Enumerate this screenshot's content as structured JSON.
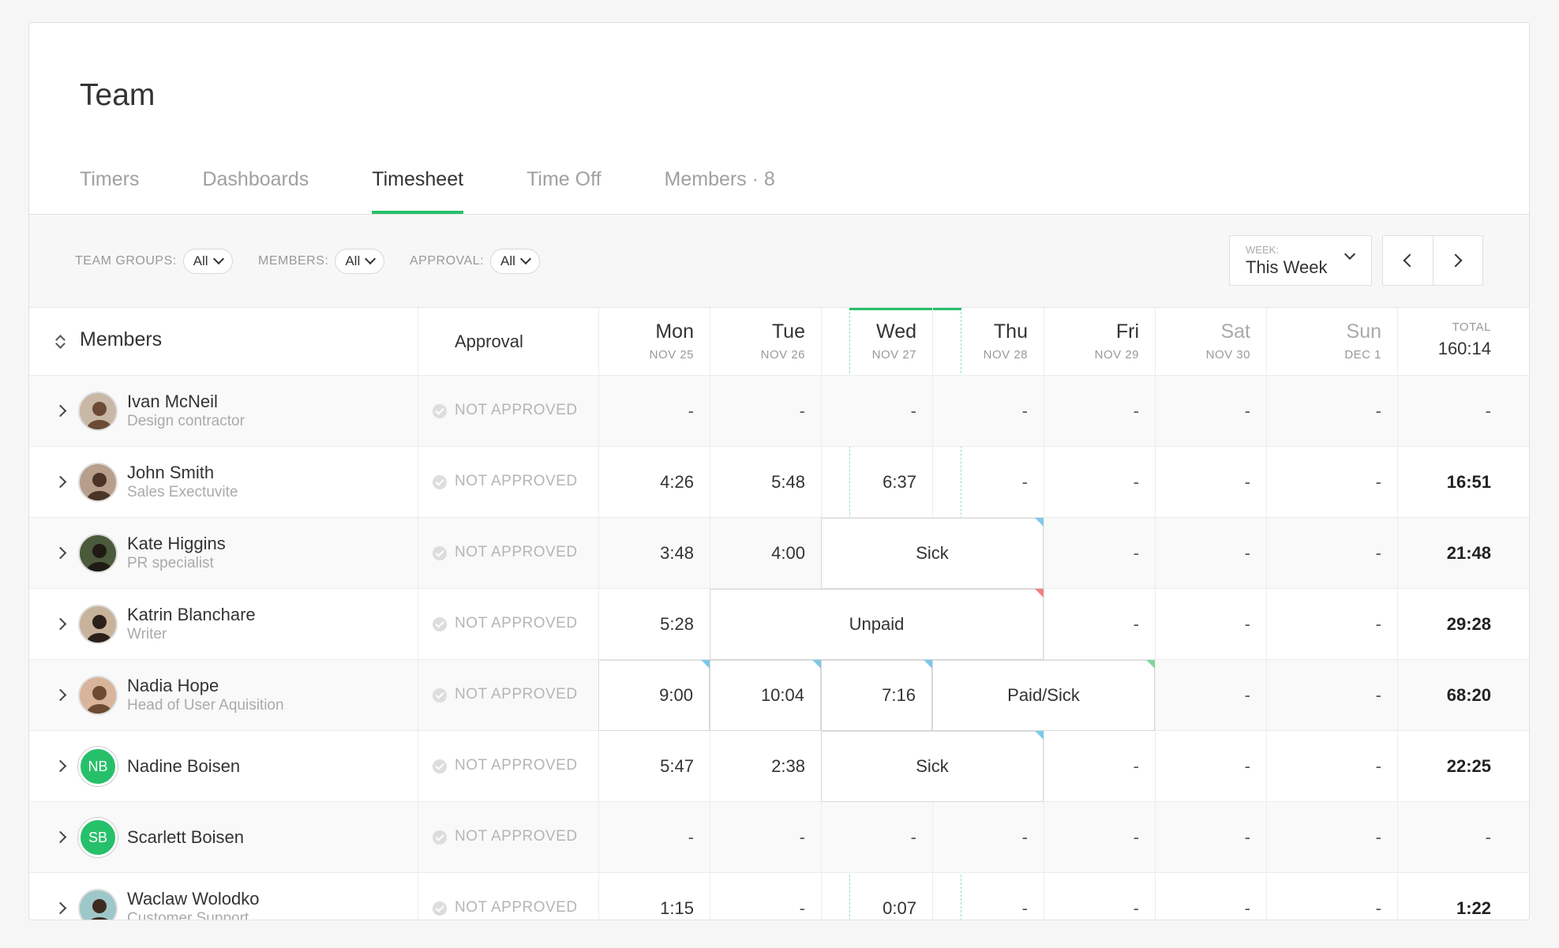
{
  "page_title": "Team",
  "tabs": [
    {
      "label": "Timers"
    },
    {
      "label": "Dashboards"
    },
    {
      "label": "Timesheet"
    },
    {
      "label": "Time Off"
    },
    {
      "label": "Members · 8"
    }
  ],
  "active_tab": "Timesheet",
  "filters": {
    "team_groups": {
      "label": "TEAM GROUPS:",
      "value": "All"
    },
    "members": {
      "label": "MEMBERS:",
      "value": "All"
    },
    "approval": {
      "label": "APPROVAL:",
      "value": "All"
    }
  },
  "week": {
    "label": "WEEK:",
    "value": "This Week"
  },
  "columns": {
    "members": "Members",
    "approval": "Approval",
    "total_label": "TOTAL",
    "total_value": "160:14",
    "days": [
      {
        "name": "Mon",
        "date": "NOV 25"
      },
      {
        "name": "Tue",
        "date": "NOV 26"
      },
      {
        "name": "Wed",
        "date": "NOV 27"
      },
      {
        "name": "Thu",
        "date": "NOV 28"
      },
      {
        "name": "Fri",
        "date": "NOV 29"
      },
      {
        "name": "Sat",
        "date": "NOV 30"
      },
      {
        "name": "Sun",
        "date": "DEC 1"
      }
    ]
  },
  "rows": [
    {
      "name": "Ivan McNeil",
      "role": "Design contractor",
      "approval": "NOT APPROVED",
      "days": [
        "-",
        "-",
        "-",
        "-",
        "-",
        "-",
        "-"
      ],
      "total": "-"
    },
    {
      "name": "John Smith",
      "role": "Sales Exectuvite",
      "approval": "NOT APPROVED",
      "days": [
        "4:26",
        "5:48",
        "6:37",
        "-",
        "-",
        "-",
        "-"
      ],
      "total": "16:51"
    },
    {
      "name": "Kate Higgins",
      "role": "PR specialist",
      "approval": "NOT APPROVED",
      "days": [
        "3:48",
        "4:00",
        "",
        "",
        "-",
        "-",
        "-"
      ],
      "block": "Sick",
      "total": "21:48"
    },
    {
      "name": "Katrin Blanchare",
      "role": "Writer",
      "approval": "NOT APPROVED",
      "days": [
        "5:28",
        "",
        "",
        "",
        "-",
        "-",
        "-"
      ],
      "block": "Unpaid",
      "total": "29:28"
    },
    {
      "name": "Nadia Hope",
      "role": "Head of User Aquisition",
      "approval": "NOT APPROVED",
      "days": [
        "9:00",
        "10:04",
        "7:16",
        "",
        "",
        "-",
        "-"
      ],
      "block": "Paid/Sick",
      "total": "68:20"
    },
    {
      "name": "Nadine Boisen",
      "role": "",
      "initials": "NB",
      "approval": "NOT APPROVED",
      "days": [
        "5:47",
        "2:38",
        "",
        "",
        "-",
        "-",
        "-"
      ],
      "block": "Sick",
      "total": "22:25"
    },
    {
      "name": "Scarlett Boisen",
      "role": "",
      "initials": "SB",
      "approval": "NOT APPROVED",
      "days": [
        "-",
        "-",
        "-",
        "-",
        "-",
        "-",
        "-"
      ],
      "total": "-"
    },
    {
      "name": "Waclaw Wolodko",
      "role": "Customer Support",
      "approval": "NOT APPROVED",
      "days": [
        "1:15",
        "-",
        "0:07",
        "-",
        "-",
        "-",
        "-"
      ],
      "total": "1:22"
    }
  ],
  "icons": {
    "sort": "sort-icon",
    "expand": "chevron-right-icon",
    "approval": "check-circle-icon",
    "prev": "chevron-left-icon",
    "next": "chevron-right-icon"
  },
  "colors": {
    "accent": "#27c06a",
    "sick_marker": "#7ec8e8",
    "unpaid_marker": "#f08080",
    "paid_marker": "#7dd8a0"
  }
}
